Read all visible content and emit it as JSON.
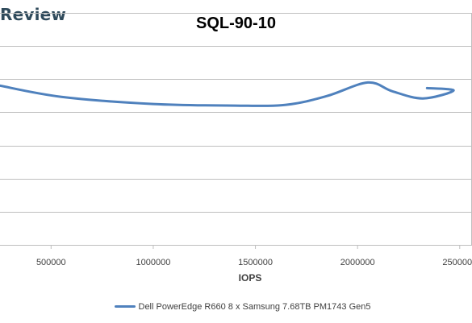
{
  "brand": {
    "text": "Review"
  },
  "chart_data": {
    "type": "line",
    "title": "SQL-90-10",
    "xlabel": "IOPS",
    "ylabel": "",
    "x_ticks": [
      "500000",
      "1000000",
      "1500000",
      "2000000",
      "2500000"
    ],
    "xlim": [
      250000,
      2560000
    ],
    "grid": true,
    "legend_position": "bottom",
    "series": [
      {
        "name": "Dell PowerEdge R660 8 x Samsung 7.68TB PM1743 Gen5",
        "color": "#4f81bd",
        "points": [
          [
            250000,
            0.5
          ],
          [
            550000,
            0.64
          ],
          [
            1000000,
            0.73
          ],
          [
            1400000,
            0.75
          ],
          [
            1650000,
            0.74
          ],
          [
            1850000,
            0.63
          ],
          [
            2050000,
            0.46
          ],
          [
            2170000,
            0.57
          ],
          [
            2320000,
            0.66
          ],
          [
            2470000,
            0.56
          ],
          [
            2340000,
            0.53
          ]
        ]
      }
    ]
  }
}
